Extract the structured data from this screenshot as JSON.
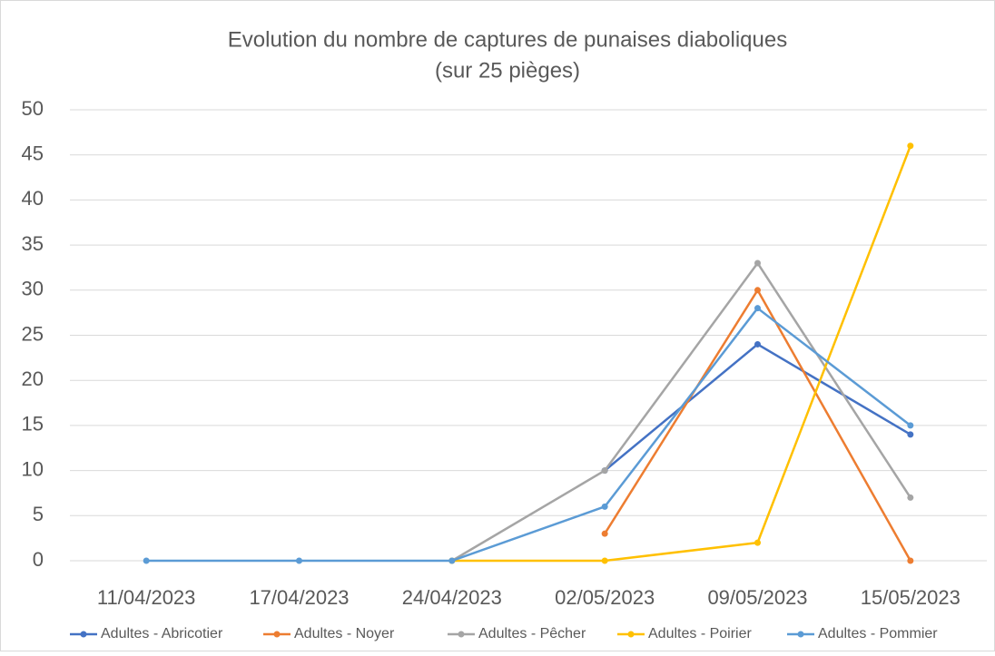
{
  "chart_data": {
    "type": "line",
    "title": "Evolution du nombre de captures de punaises diaboliques",
    "subtitle": "(sur 25 pièges)",
    "categories": [
      "11/04/2023",
      "17/04/2023",
      "24/04/2023",
      "02/05/2023",
      "09/05/2023",
      "15/05/2023"
    ],
    "series": [
      {
        "name": "Adultes - Abricotier",
        "color": "#4472c4",
        "values": [
          null,
          null,
          null,
          10,
          24,
          14
        ]
      },
      {
        "name": "Adultes - Noyer",
        "color": "#ed7d31",
        "values": [
          null,
          null,
          null,
          3,
          30,
          0
        ]
      },
      {
        "name": "Adultes - Pêcher",
        "color": "#a5a5a5",
        "values": [
          null,
          null,
          0,
          10,
          33,
          7
        ]
      },
      {
        "name": "Adultes - Poirier",
        "color": "#ffc000",
        "values": [
          null,
          null,
          0,
          0,
          2,
          46
        ]
      },
      {
        "name": "Adultes - Pommier",
        "color": "#5b9bd5",
        "values": [
          0,
          0,
          0,
          6,
          28,
          15
        ]
      }
    ],
    "ylim": [
      0,
      50
    ],
    "yticks": [
      0,
      5,
      10,
      15,
      20,
      25,
      30,
      35,
      40,
      45,
      50
    ],
    "grid": true,
    "legend": "bottom"
  }
}
